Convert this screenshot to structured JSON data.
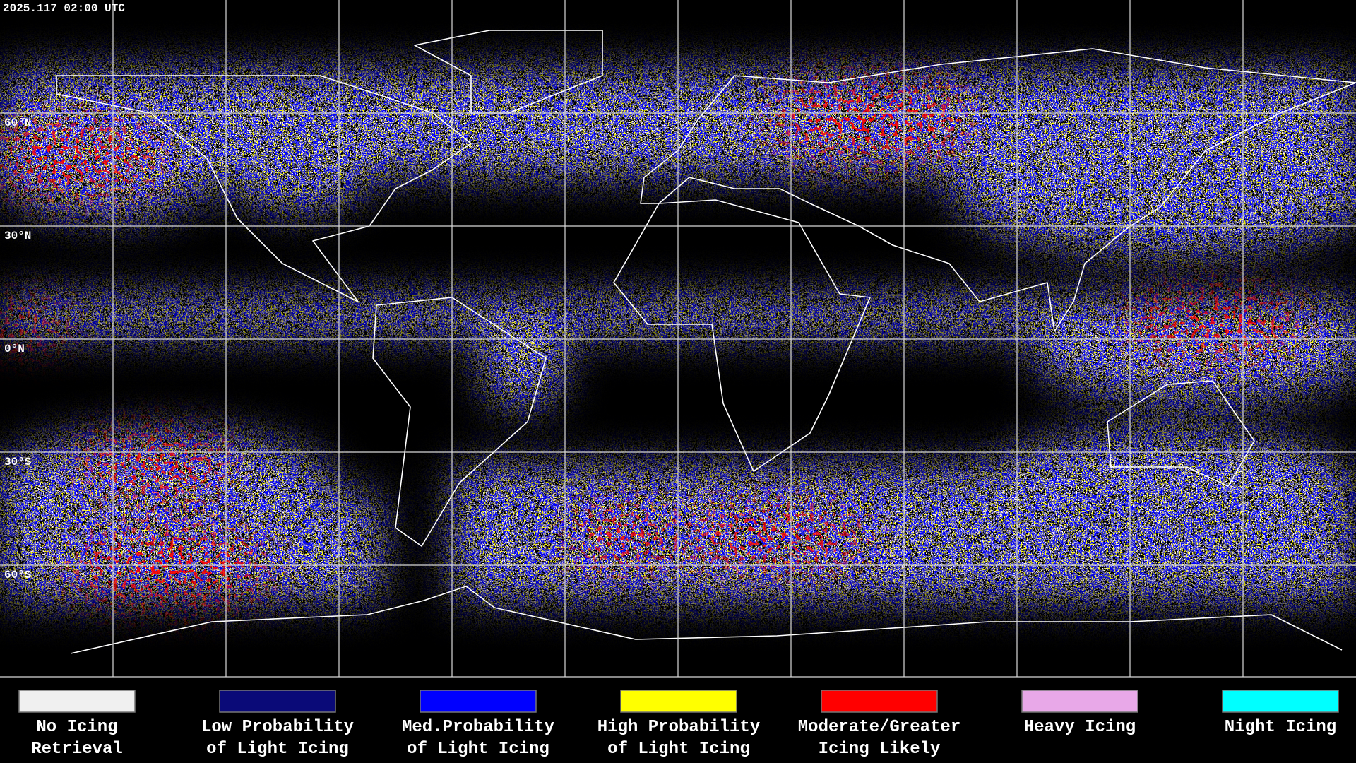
{
  "header": {
    "timestamp": "2025.117 02:00 UTC"
  },
  "map": {
    "latitude_labels": [
      "60°N",
      "30°N",
      "0°N",
      "30°S",
      "60°S"
    ]
  },
  "legend": {
    "items": [
      {
        "label": [
          "No Icing",
          "Retrieval"
        ],
        "color": "#f0f0f0"
      },
      {
        "label": [
          "Low Probability",
          "of Light Icing"
        ],
        "color": "#0a0a78"
      },
      {
        "label": [
          "Med.Probability",
          "of Light Icing"
        ],
        "color": "#0000ff"
      },
      {
        "label": [
          "High Probability",
          "of Light Icing"
        ],
        "color": "#ffff00"
      },
      {
        "label": [
          "Moderate/Greater",
          "Icing Likely"
        ],
        "color": "#ff0000"
      },
      {
        "label": [
          "Heavy Icing"
        ],
        "color": "#e8a8e8"
      },
      {
        "label": [
          "Night Icing"
        ],
        "color": "#00ffff"
      }
    ]
  }
}
